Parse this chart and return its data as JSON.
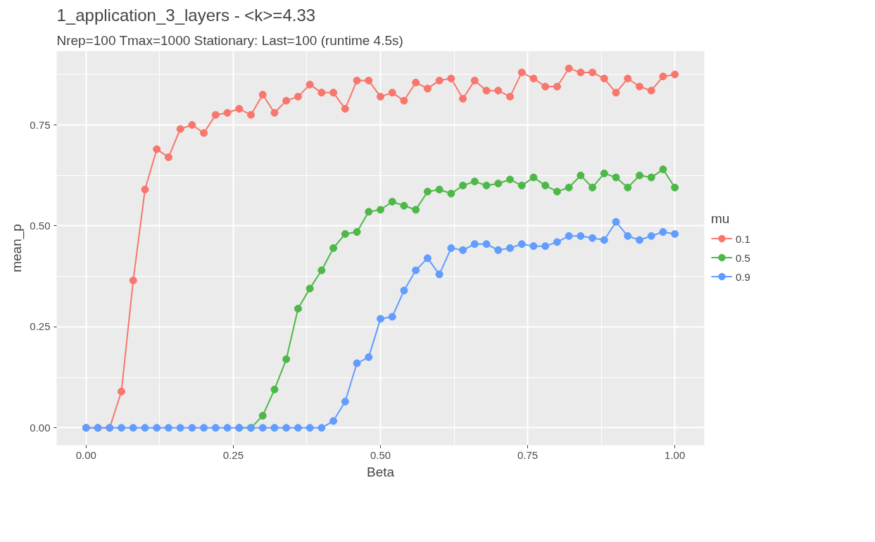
{
  "chart_data": {
    "type": "line",
    "title": "1_application_3_layers - <k>=4.33",
    "subtitle": "Nrep=100 Tmax=1000 Stationary: Last=100 (runtime 4.5s)",
    "xlabel": "Beta",
    "ylabel": "mean_p",
    "legend_title": "mu",
    "x": [
      0,
      0.02,
      0.04,
      0.06,
      0.08,
      0.1,
      0.12,
      0.14,
      0.16,
      0.18,
      0.2,
      0.22,
      0.24,
      0.26,
      0.28,
      0.3,
      0.32,
      0.34,
      0.36,
      0.38,
      0.4,
      0.42,
      0.44,
      0.46,
      0.48,
      0.5,
      0.52,
      0.54,
      0.56,
      0.58,
      0.6,
      0.62,
      0.64,
      0.66,
      0.68,
      0.7,
      0.72,
      0.74,
      0.76,
      0.78,
      0.8,
      0.82,
      0.84,
      0.86,
      0.88,
      0.9,
      0.92,
      0.94,
      0.96,
      0.98,
      1.0
    ],
    "series": [
      {
        "name": "0.1",
        "color": "#f8766d",
        "values": [
          0,
          0,
          0,
          0.09,
          0.365,
          0.59,
          0.69,
          0.67,
          0.74,
          0.75,
          0.73,
          0.775,
          0.78,
          0.79,
          0.775,
          0.825,
          0.78,
          0.81,
          0.82,
          0.85,
          0.83,
          0.83,
          0.79,
          0.86,
          0.86,
          0.82,
          0.83,
          0.81,
          0.855,
          0.84,
          0.86,
          0.865,
          0.815,
          0.86,
          0.835,
          0.835,
          0.82,
          0.88,
          0.865,
          0.845,
          0.845,
          0.89,
          0.88,
          0.88,
          0.865,
          0.83,
          0.865,
          0.845,
          0.835,
          0.87,
          0.875
        ]
      },
      {
        "name": "0.5",
        "color": "#4db848",
        "values": [
          null,
          null,
          null,
          null,
          null,
          null,
          null,
          null,
          null,
          null,
          null,
          null,
          null,
          0,
          0,
          0.03,
          0.095,
          0.17,
          0.295,
          0.345,
          0.39,
          0.445,
          0.48,
          0.485,
          0.535,
          0.54,
          0.56,
          0.55,
          0.54,
          0.585,
          0.59,
          0.58,
          0.6,
          0.61,
          0.6,
          0.605,
          0.615,
          0.6,
          0.62,
          0.6,
          0.585,
          0.595,
          0.625,
          0.595,
          0.63,
          0.62,
          0.595,
          0.625,
          0.62,
          0.64,
          0.595
        ]
      },
      {
        "name": "0.9",
        "color": "#619cff",
        "values": [
          0,
          0,
          0,
          0,
          0,
          0,
          0,
          0,
          0,
          0,
          0,
          0,
          0,
          0,
          0,
          0,
          0,
          0,
          0,
          0,
          0,
          0.017,
          0.065,
          0.16,
          0.175,
          0.27,
          0.275,
          0.34,
          0.39,
          0.42,
          0.38,
          0.445,
          0.44,
          0.455,
          0.455,
          0.44,
          0.445,
          0.455,
          0.45,
          0.45,
          0.46,
          0.475,
          0.475,
          0.47,
          0.465,
          0.51,
          0.475,
          0.465,
          0.475,
          0.485,
          0.48
        ]
      }
    ],
    "xlim": [
      -0.05,
      1.05
    ],
    "ylim": [
      -0.043,
      0.933
    ],
    "xticks": [
      {
        "value": 0,
        "label": "0.00"
      },
      {
        "value": 0.25,
        "label": "0.25"
      },
      {
        "value": 0.5,
        "label": "0.50"
      },
      {
        "value": 0.75,
        "label": "0.75"
      },
      {
        "value": 1,
        "label": "1.00"
      }
    ],
    "yticks": [
      {
        "value": 0,
        "label": "0.00"
      },
      {
        "value": 0.25,
        "label": "0.25"
      },
      {
        "value": 0.5,
        "label": "0.50"
      },
      {
        "value": 0.75,
        "label": "0.75"
      }
    ],
    "grid": true,
    "legend": "right",
    "marker": "circle",
    "line_style": "solid"
  }
}
